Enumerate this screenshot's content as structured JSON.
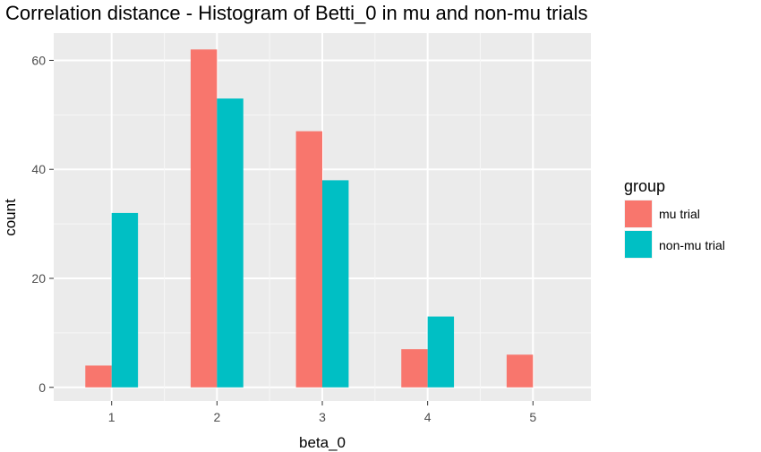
{
  "chart_data": {
    "type": "bar",
    "title": "Correlation distance - Histogram of Betti_0 in mu and non-mu trials",
    "xlabel": "beta_0",
    "ylabel": "count",
    "categories": [
      "1",
      "2",
      "3",
      "4",
      "5"
    ],
    "series": [
      {
        "name": "mu trial",
        "values": [
          4,
          62,
          47,
          7,
          6
        ],
        "color": "#F8766D"
      },
      {
        "name": "non-mu trial",
        "values": [
          32,
          53,
          38,
          13,
          0
        ],
        "color": "#00BFC4"
      }
    ],
    "yticks": [
      0,
      20,
      40,
      60
    ],
    "ylim": [
      -2.5,
      65
    ],
    "xlim": [
      0.45,
      5.55
    ],
    "grid": true,
    "panel_background": "#EBEBEB",
    "legend": {
      "title": "group",
      "position": "right"
    }
  }
}
